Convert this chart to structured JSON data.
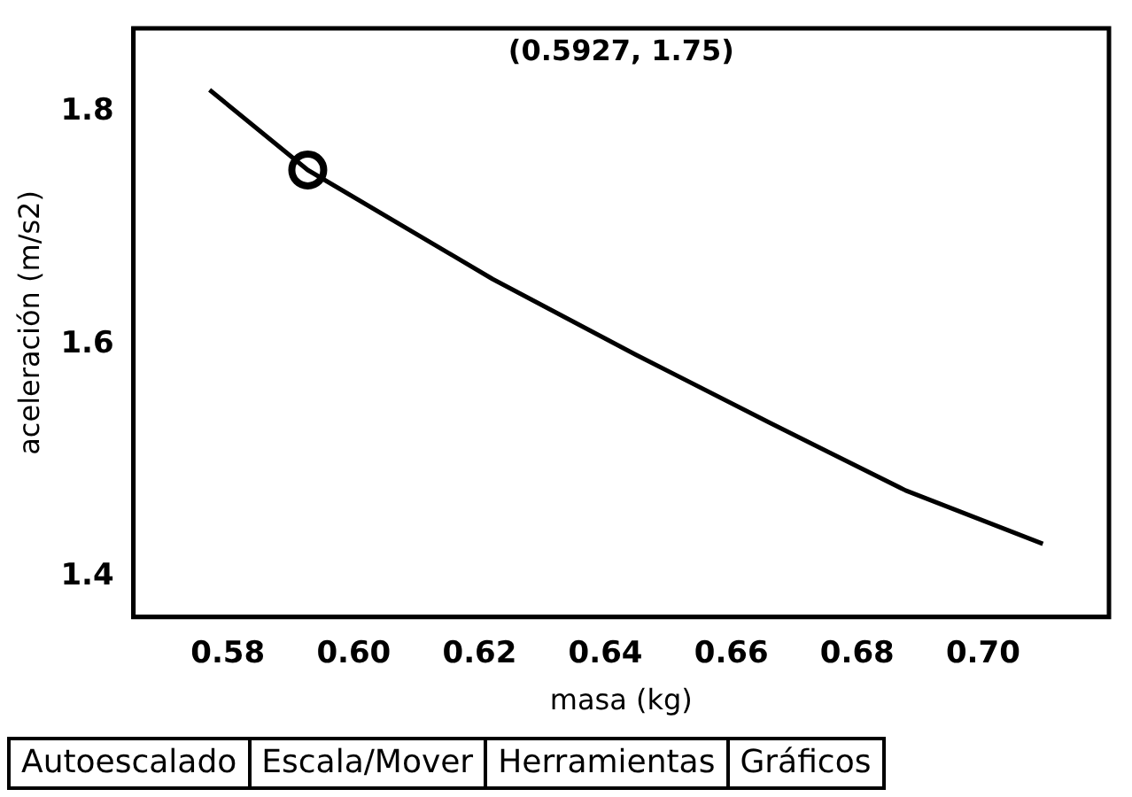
{
  "chart_data": {
    "type": "line",
    "xlabel": "masa (kg)",
    "ylabel": "aceleración (m/s2)",
    "xlim": [
      0.565,
      0.72
    ],
    "xticks": [
      {
        "value": 0.58,
        "label": "0.58"
      },
      {
        "value": 0.6,
        "label": "0.60"
      },
      {
        "value": 0.62,
        "label": "0.62"
      },
      {
        "value": 0.64,
        "label": "0.64"
      },
      {
        "value": 0.66,
        "label": "0.66"
      },
      {
        "value": 0.68,
        "label": "0.68"
      },
      {
        "value": 0.7,
        "label": "0.70"
      }
    ],
    "ylim": [
      1.365,
      1.872
    ],
    "yticks": [
      1.4,
      1.6,
      1.8
    ],
    "grid": false,
    "legend": false,
    "marker": "none",
    "line_style": "solid",
    "series": [
      {
        "color": "#000000",
        "x": [
          0.5771,
          0.5927,
          0.6221,
          0.6448,
          0.6662,
          0.6877,
          0.7095
        ],
        "values": [
          1.819,
          1.75,
          1.656,
          1.591,
          1.532,
          1.474,
          1.428
        ]
      },
      {
        "type": "scatter",
        "marker": "circle",
        "color": "#000000",
        "x": [
          0.5927
        ],
        "values": [
          1.75
        ]
      }
    ],
    "annotations": [
      "(0.5927, 1.75)",
      "Autoescalado",
      "Escala/Mover",
      "Herramientas",
      "Gráficos"
    ]
  }
}
